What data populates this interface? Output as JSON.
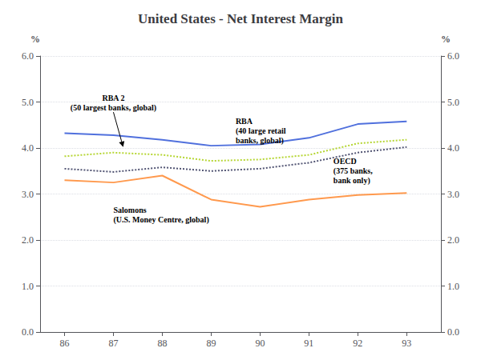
{
  "chart_data": {
    "type": "line",
    "title": "United States - Net Interest Margin",
    "ylabel": "%",
    "y2label": "%",
    "x": [
      86,
      87,
      88,
      89,
      90,
      91,
      92,
      93
    ],
    "xlim": [
      85.5,
      93.7
    ],
    "xticks": [
      86,
      87,
      88,
      89,
      90,
      91,
      92,
      93
    ],
    "ylim": [
      0.0,
      6.0
    ],
    "yticks": [
      {
        "value": 0.0,
        "label": "0.0"
      },
      {
        "value": 1.0,
        "label": "1.0"
      },
      {
        "value": 2.0,
        "label": "2.0"
      },
      {
        "value": 3.0,
        "label": "3.0"
      },
      {
        "value": 4.0,
        "label": "4.0"
      },
      {
        "value": 5.0,
        "label": "5.0"
      },
      {
        "value": 6.0,
        "label": "6.0"
      }
    ],
    "y2lim": [
      0.0,
      6.0
    ],
    "y2ticks": [
      {
        "value": 0.0,
        "label": "0.0"
      },
      {
        "value": 1.0,
        "label": "1.0"
      },
      {
        "value": 2.0,
        "label": "2.0"
      },
      {
        "value": 3.0,
        "label": "3.0"
      },
      {
        "value": 4.0,
        "label": "4.0"
      },
      {
        "value": 5.0,
        "label": "5.0"
      },
      {
        "value": 6.0,
        "label": "6.0"
      }
    ],
    "grid": true,
    "series": [
      {
        "values": [
          4.32,
          4.28,
          4.18,
          4.05,
          4.08,
          4.22,
          4.52,
          4.58
        ],
        "line_style": "solid"
      },
      {
        "values": [
          3.82,
          3.9,
          3.85,
          3.72,
          3.75,
          3.85,
          4.1,
          4.18
        ],
        "line_style": "dotted"
      },
      {
        "values": [
          3.55,
          3.48,
          3.58,
          3.5,
          3.55,
          3.68,
          3.9,
          4.02
        ],
        "line_style": "dotted"
      },
      {
        "values": [
          3.3,
          3.25,
          3.4,
          2.88,
          2.72,
          2.88,
          2.98,
          3.02
        ],
        "line_style": "solid"
      }
    ],
    "annotations": [
      {
        "text": "RBA 2\n(50 largest banks, global)",
        "x": 87.0,
        "y": 4.78,
        "arrow_to": [
          87.2,
          4.02
        ]
      },
      {
        "text": "RBA\n(40 large retail\nbanks, global)",
        "x": 89.5,
        "y": 4.68
      },
      {
        "text": "OECD\n(375 banks,\nbank only)",
        "x": 91.5,
        "y": 3.82
      },
      {
        "text": "Salomons\n(U.S. Money Centre, global)",
        "x": 87.0,
        "y": 2.75
      }
    ]
  }
}
